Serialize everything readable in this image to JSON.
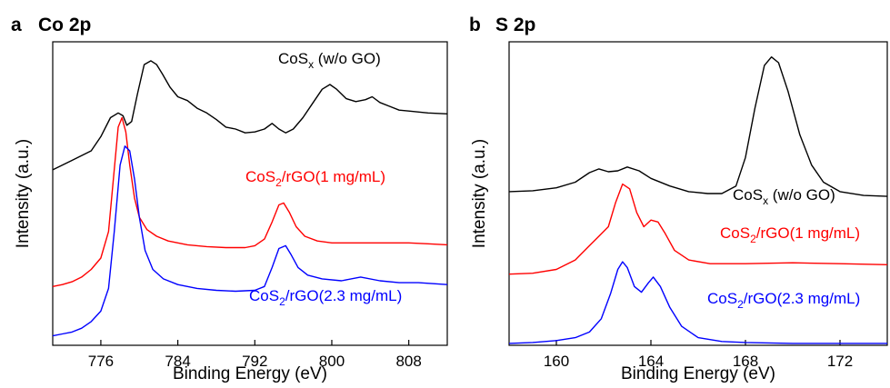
{
  "chart_data": [
    {
      "type": "line",
      "panel_letter": "a",
      "title": "Co 2p",
      "xlabel": "Binding Energy (eV)",
      "ylabel": "Intensity (a.u.)",
      "xlim": [
        771,
        812
      ],
      "ylim": [
        0,
        3.2
      ],
      "xticks": [
        776,
        784,
        792,
        800,
        808
      ],
      "grid": false,
      "legend": "inline labels",
      "series": [
        {
          "name_main": "CoS",
          "name_sub": "x",
          "name_rest": " (w/o GO)",
          "color": "#000000",
          "x": [
            771,
            773,
            775,
            776,
            777,
            777.8,
            778.3,
            778.7,
            779.2,
            779.8,
            780.5,
            781.2,
            781.8,
            782.4,
            783.2,
            784,
            785,
            786,
            787,
            788,
            789,
            790,
            791,
            792,
            793,
            793.8,
            794.5,
            795.2,
            796,
            797,
            798,
            799,
            799.8,
            800.5,
            801.5,
            802.5,
            803.5,
            804.2,
            805,
            806,
            807,
            808,
            810,
            812
          ],
          "y": [
            1.85,
            1.95,
            2.05,
            2.2,
            2.4,
            2.45,
            2.42,
            2.32,
            2.36,
            2.65,
            2.96,
            3.0,
            2.96,
            2.86,
            2.72,
            2.62,
            2.58,
            2.5,
            2.45,
            2.38,
            2.3,
            2.28,
            2.24,
            2.25,
            2.28,
            2.34,
            2.28,
            2.24,
            2.28,
            2.4,
            2.55,
            2.7,
            2.75,
            2.7,
            2.6,
            2.57,
            2.59,
            2.62,
            2.56,
            2.52,
            2.48,
            2.47,
            2.45,
            2.44
          ]
        },
        {
          "name_main": "CoS",
          "name_sub": "2",
          "name_rest": "/rGO(1 mg/mL)",
          "color": "#ff0000",
          "x": [
            771,
            772,
            773,
            774,
            775,
            776,
            776.8,
            777.3,
            777.8,
            778.2,
            778.6,
            779,
            779.5,
            780,
            780.8,
            781.8,
            783,
            785,
            787,
            789,
            791,
            792,
            793,
            793.8,
            794.5,
            795,
            795.6,
            796.3,
            797.2,
            798.5,
            800,
            802,
            804,
            806,
            808,
            810,
            812
          ],
          "y": [
            0.62,
            0.64,
            0.67,
            0.72,
            0.8,
            0.92,
            1.2,
            1.75,
            2.3,
            2.4,
            2.25,
            1.9,
            1.55,
            1.35,
            1.22,
            1.15,
            1.1,
            1.06,
            1.04,
            1.03,
            1.03,
            1.05,
            1.12,
            1.3,
            1.48,
            1.5,
            1.4,
            1.25,
            1.15,
            1.1,
            1.08,
            1.08,
            1.08,
            1.08,
            1.08,
            1.07,
            1.06
          ]
        },
        {
          "name_main": "CoS",
          "name_sub": "2",
          "name_rest": "/rGO(2.3 mg/mL)",
          "color": "#0000ff",
          "x": [
            771,
            772,
            773,
            774,
            775,
            776,
            776.8,
            777.4,
            778,
            778.5,
            779,
            779.5,
            780,
            780.6,
            781.4,
            782.5,
            784,
            786,
            788,
            790,
            792,
            793,
            793.8,
            794.5,
            795.2,
            795.8,
            796.5,
            797.5,
            799,
            801,
            803,
            805,
            807,
            809,
            812
          ],
          "y": [
            0.1,
            0.12,
            0.14,
            0.18,
            0.25,
            0.36,
            0.6,
            1.2,
            1.9,
            2.1,
            2.05,
            1.75,
            1.35,
            1.0,
            0.8,
            0.7,
            0.64,
            0.6,
            0.58,
            0.57,
            0.58,
            0.62,
            0.82,
            1.02,
            1.05,
            0.95,
            0.82,
            0.74,
            0.7,
            0.68,
            0.72,
            0.68,
            0.66,
            0.66,
            0.64
          ]
        }
      ]
    },
    {
      "type": "line",
      "panel_letter": "b",
      "title": "S 2p",
      "xlabel": "Binding Energy (eV)",
      "ylabel": "Intensity (a.u.)",
      "xlim": [
        158,
        174
      ],
      "ylim": [
        0,
        3.2
      ],
      "xticks": [
        160,
        164,
        168,
        172
      ],
      "grid": false,
      "legend": "inline labels",
      "series": [
        {
          "name_main": "CoS",
          "name_sub": "x",
          "name_rest": " (w/o GO)",
          "color": "#000000",
          "x": [
            158,
            159,
            160,
            160.8,
            161.4,
            161.8,
            162.2,
            162.6,
            163,
            163.5,
            164,
            164.8,
            165.6,
            166.4,
            167,
            167.6,
            168,
            168.4,
            168.8,
            169.1,
            169.4,
            169.8,
            170.3,
            170.8,
            171.3,
            172,
            173,
            174
          ],
          "y": [
            1.62,
            1.63,
            1.66,
            1.72,
            1.82,
            1.86,
            1.83,
            1.84,
            1.88,
            1.84,
            1.76,
            1.68,
            1.62,
            1.6,
            1.6,
            1.68,
            1.98,
            2.5,
            2.95,
            3.04,
            2.98,
            2.68,
            2.22,
            1.9,
            1.72,
            1.62,
            1.58,
            1.57
          ]
        },
        {
          "name_main": "CoS",
          "name_sub": "2",
          "name_rest": "/rGO(1 mg/mL)",
          "color": "#ff0000",
          "x": [
            158,
            159,
            160,
            160.8,
            161.4,
            161.8,
            162.2,
            162.5,
            162.8,
            163.1,
            163.4,
            163.7,
            164,
            164.3,
            164.6,
            165,
            165.6,
            166.5,
            168,
            170,
            172,
            174
          ],
          "y": [
            0.75,
            0.76,
            0.8,
            0.9,
            1.05,
            1.15,
            1.25,
            1.5,
            1.7,
            1.65,
            1.4,
            1.25,
            1.32,
            1.3,
            1.18,
            1.0,
            0.9,
            0.86,
            0.86,
            0.87,
            0.86,
            0.85
          ]
        },
        {
          "name_main": "CoS",
          "name_sub": "2",
          "name_rest": "/rGO(2.3 mg/mL)",
          "color": "#0000ff",
          "x": [
            158,
            159,
            160,
            160.8,
            161.4,
            161.9,
            162.3,
            162.6,
            162.8,
            163,
            163.3,
            163.6,
            163.9,
            164.1,
            164.4,
            164.8,
            165.3,
            166,
            167,
            168,
            170,
            174
          ],
          "y": [
            0.02,
            0.03,
            0.05,
            0.08,
            0.14,
            0.28,
            0.55,
            0.8,
            0.88,
            0.82,
            0.62,
            0.56,
            0.66,
            0.72,
            0.62,
            0.4,
            0.2,
            0.08,
            0.04,
            0.03,
            0.02,
            0.02
          ]
        }
      ]
    }
  ]
}
